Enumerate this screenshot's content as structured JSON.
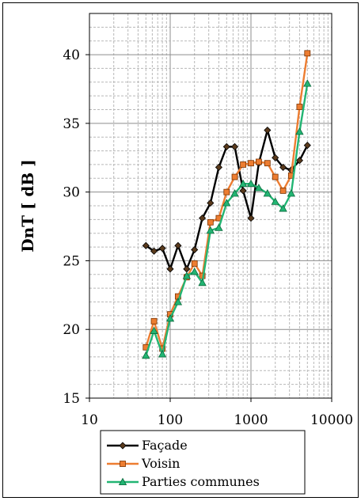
{
  "chart_data": {
    "type": "line",
    "xscale": "log",
    "xlim": [
      10,
      10000
    ],
    "ylim": [
      15,
      43
    ],
    "xticks": [
      10,
      100,
      1000,
      10000
    ],
    "xtick_labels": [
      "10",
      "100",
      "1000",
      "10000"
    ],
    "yticks": [
      15,
      20,
      25,
      30,
      35,
      40
    ],
    "ytick_labels": [
      "15",
      "20",
      "25",
      "30",
      "35",
      "40"
    ],
    "xlabel": "",
    "ylabel": "DnT [ dB ]",
    "grid": true,
    "legend_position": "bottom",
    "x": [
      50,
      63,
      80,
      100,
      125,
      160,
      200,
      250,
      315,
      400,
      500,
      630,
      800,
      1000,
      1250,
      1600,
      2000,
      2500,
      3150,
      4000,
      5000
    ],
    "series": [
      {
        "name": "Façade",
        "color": "#000000",
        "marker": "diamond",
        "values": [
          26.1,
          25.7,
          25.9,
          24.4,
          26.1,
          24.4,
          25.8,
          28.1,
          29.2,
          31.8,
          33.3,
          33.3,
          30.1,
          28.1,
          32.1,
          34.5,
          32.5,
          31.8,
          31.6,
          32.3,
          33.4
        ]
      },
      {
        "name": "Voisin",
        "color": "#ED7D31",
        "marker": "square",
        "values": [
          18.7,
          20.6,
          18.6,
          21.1,
          22.4,
          23.8,
          24.8,
          23.9,
          27.8,
          28.1,
          30.0,
          31.1,
          32.0,
          32.1,
          32.2,
          32.1,
          31.1,
          30.1,
          31.2,
          36.2,
          40.1
        ]
      },
      {
        "name": "Parties communes",
        "color": "#22B573",
        "marker": "triangle",
        "values": [
          18.1,
          19.9,
          18.2,
          20.8,
          22.0,
          23.9,
          24.2,
          23.4,
          27.2,
          27.4,
          29.2,
          29.9,
          30.6,
          30.6,
          30.3,
          29.9,
          29.3,
          28.8,
          29.9,
          34.4,
          37.9
        ]
      }
    ]
  }
}
